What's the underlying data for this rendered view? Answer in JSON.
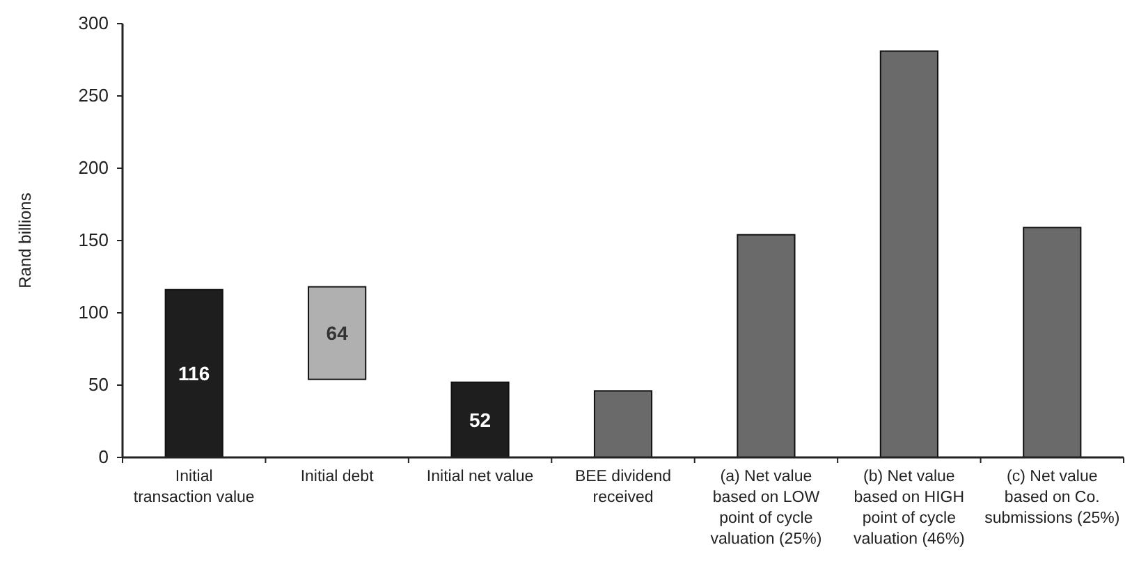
{
  "chart_data": {
    "type": "bar",
    "ylabel": "Rand billions",
    "categories": [
      "Initial transaction value",
      "Initial debt",
      "Initial net value",
      "BEE dividend received",
      "(a) Net value based on LOW point of cycle valuation (25%)",
      "(b) Net value based on HIGH point of cycle valuation (46%)",
      "(c) Net value based on Co. submissions (25%)"
    ],
    "values": [
      116,
      64,
      52,
      46,
      154,
      281,
      159
    ],
    "base": [
      0,
      54,
      0,
      0,
      0,
      0,
      0
    ],
    "colors": [
      "#1e1e1e",
      "#b0b0b0",
      "#1e1e1e",
      "#6a6a6a",
      "#6a6a6a",
      "#6a6a6a",
      "#6a6a6a"
    ],
    "value_labels": [
      "116",
      "64",
      "52",
      null,
      null,
      null,
      null
    ],
    "ylim": [
      0,
      300
    ],
    "yticks": [
      0,
      50,
      100,
      150,
      200,
      250,
      300
    ],
    "grid": false
  }
}
